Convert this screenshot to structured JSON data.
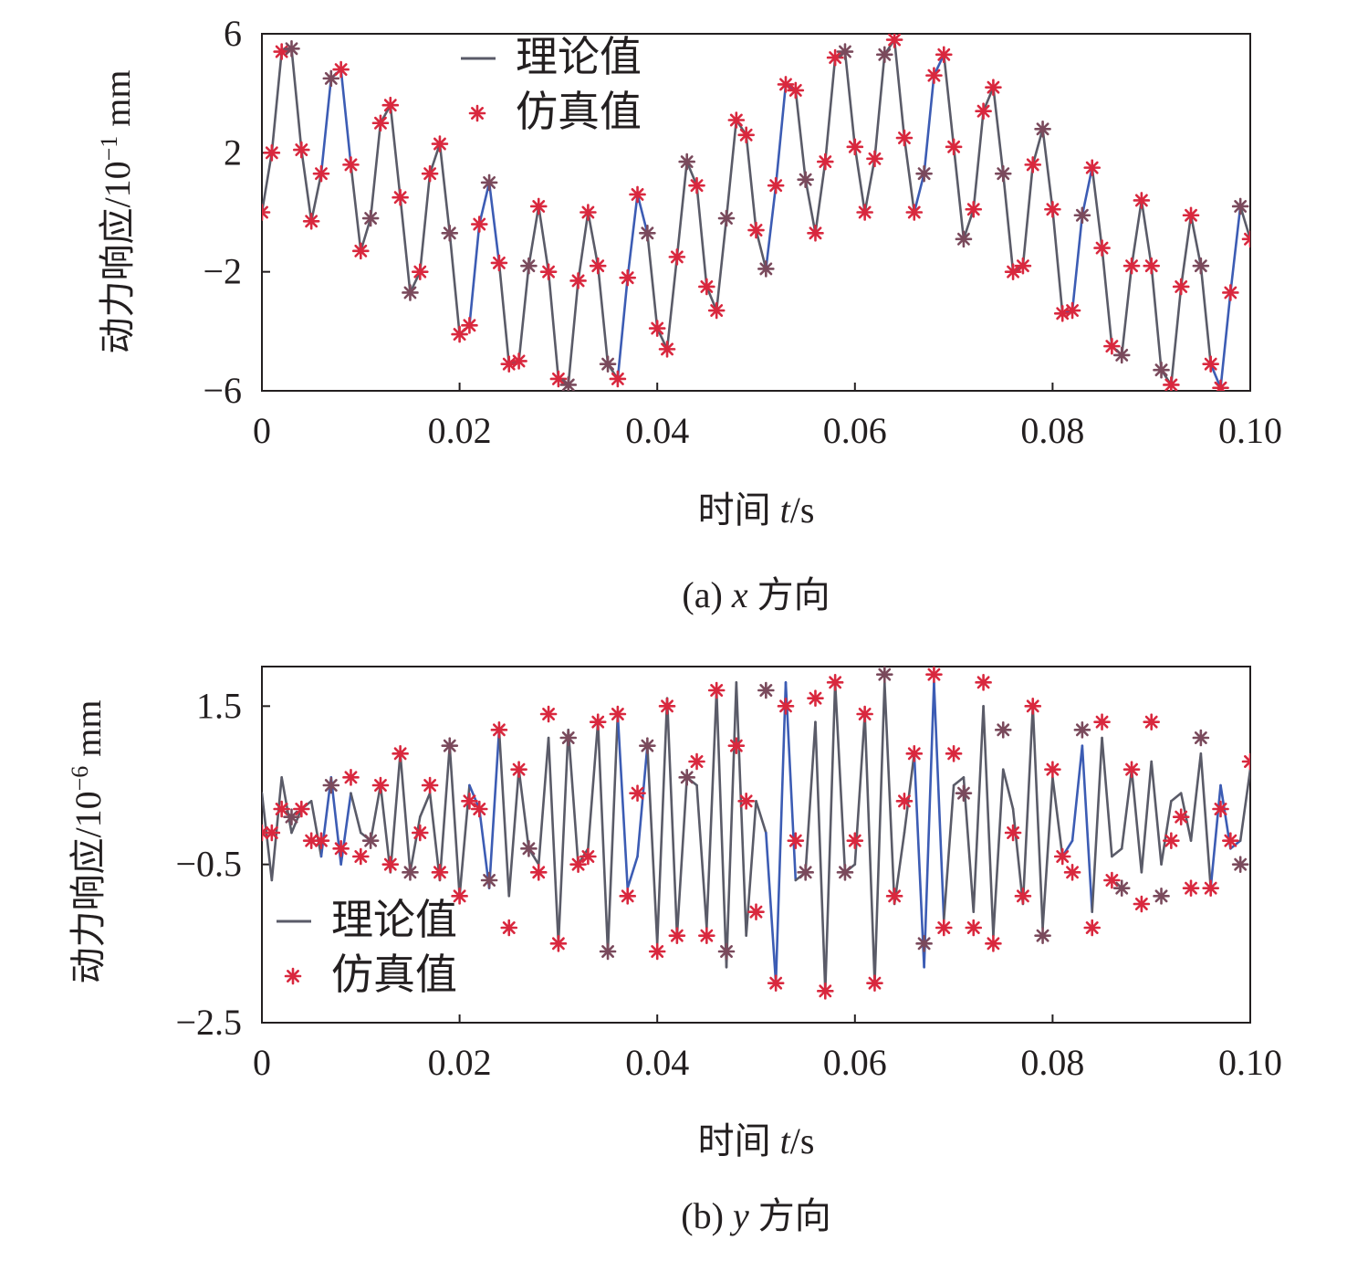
{
  "chart_data": [
    {
      "type": "line",
      "caption": {
        "prefix": "(a) ",
        "var": "x",
        "suffix": " 方向"
      },
      "xlabel": {
        "prefix": "时间 ",
        "var": "t",
        "suffix": "/s"
      },
      "ylabel": {
        "text": "动力响应/10",
        "exp": "−1",
        "unit": " mm"
      },
      "xlim": [
        0,
        0.1
      ],
      "ylim": [
        -6,
        6
      ],
      "xticks": [
        0,
        0.02,
        0.04,
        0.06,
        0.08,
        0.1
      ],
      "xtick_labels": [
        "0",
        "0.02",
        "0.04",
        "0.06",
        "0.08",
        "0.10"
      ],
      "yticks": [
        6,
        2,
        -2,
        -6
      ],
      "ytick_labels": [
        "6",
        "2",
        "−2",
        "−6"
      ],
      "legend": {
        "position": "top-center",
        "line_label": "理论值",
        "marker_label": "仿真值"
      },
      "line_colors": [
        "#5a5b68",
        "#3c5cb4"
      ],
      "marker_colors": [
        "#d9283e",
        "#7a4a5c"
      ],
      "series": [
        {
          "name": "理论值",
          "style": "line",
          "x": [
            0,
            0.001,
            0.002,
            0.003,
            0.004,
            0.005,
            0.006,
            0.007,
            0.008,
            0.009,
            0.01,
            0.011,
            0.012,
            0.013,
            0.014,
            0.015,
            0.016,
            0.017,
            0.018,
            0.019,
            0.02,
            0.021,
            0.022,
            0.023,
            0.024,
            0.025,
            0.026,
            0.027,
            0.028,
            0.029,
            0.03,
            0.031,
            0.032,
            0.033,
            0.034,
            0.035,
            0.036,
            0.037,
            0.038,
            0.039,
            0.04,
            0.041,
            0.042,
            0.043,
            0.044,
            0.045,
            0.046,
            0.047,
            0.048,
            0.049,
            0.05,
            0.051,
            0.052,
            0.053,
            0.054,
            0.055,
            0.056,
            0.057,
            0.058,
            0.059,
            0.06,
            0.061,
            0.062,
            0.063,
            0.064,
            0.065,
            0.066,
            0.067,
            0.068,
            0.069,
            0.07,
            0.071,
            0.072,
            0.073,
            0.074,
            0.075,
            0.076,
            0.077,
            0.078,
            0.079,
            0.08,
            0.081,
            0.082,
            0.083,
            0.084,
            0.085,
            0.086,
            0.087,
            0.088,
            0.089,
            0.09,
            0.091,
            0.092,
            0.093,
            0.094,
            0.095,
            0.096,
            0.097,
            0.098,
            0.099,
            0.1
          ],
          "y": [
            0.0,
            2.0,
            5.4,
            5.5,
            2.1,
            -0.3,
            1.3,
            4.5,
            4.8,
            1.6,
            -1.3,
            -0.2,
            3.0,
            3.6,
            0.5,
            -2.7,
            -2.0,
            1.3,
            2.3,
            -0.7,
            -4.1,
            -3.8,
            -0.4,
            1.0,
            -1.7,
            -5.1,
            -5.0,
            -1.8,
            0.2,
            -2.0,
            -5.6,
            -5.8,
            -2.3,
            0.0,
            -1.8,
            -5.1,
            -5.6,
            -2.2,
            0.6,
            -0.7,
            -3.9,
            -4.6,
            -1.5,
            1.7,
            0.9,
            -2.5,
            -3.3,
            -0.2,
            3.1,
            2.6,
            -0.6,
            -1.9,
            0.9,
            4.3,
            4.1,
            1.1,
            -0.7,
            1.7,
            5.2,
            5.4,
            2.2,
            0.0,
            1.8,
            5.3,
            5.8,
            2.5,
            0.0,
            1.3,
            4.6,
            5.3,
            2.2,
            -0.9,
            0.1,
            3.4,
            4.2,
            1.3,
            -2.0,
            -1.8,
            1.6,
            2.8,
            0.1,
            -3.4,
            -3.3,
            -0.1,
            1.5,
            -1.2,
            -4.5,
            -4.8,
            -1.8,
            0.4,
            -1.8,
            -5.3,
            -5.8,
            -2.5,
            -0.1,
            -1.8,
            -5.1,
            -5.9,
            -2.7,
            0.2,
            -0.9
          ]
        },
        {
          "name": "仿真值",
          "style": "marker",
          "x": [
            0,
            0.001,
            0.002,
            0.003,
            0.004,
            0.005,
            0.006,
            0.007,
            0.008,
            0.009,
            0.01,
            0.011,
            0.012,
            0.013,
            0.014,
            0.015,
            0.016,
            0.017,
            0.018,
            0.019,
            0.02,
            0.021,
            0.022,
            0.023,
            0.024,
            0.025,
            0.026,
            0.027,
            0.028,
            0.029,
            0.03,
            0.031,
            0.032,
            0.033,
            0.034,
            0.035,
            0.036,
            0.037,
            0.038,
            0.039,
            0.04,
            0.041,
            0.042,
            0.043,
            0.044,
            0.045,
            0.046,
            0.047,
            0.048,
            0.049,
            0.05,
            0.051,
            0.052,
            0.053,
            0.054,
            0.055,
            0.056,
            0.057,
            0.058,
            0.059,
            0.06,
            0.061,
            0.062,
            0.063,
            0.064,
            0.065,
            0.066,
            0.067,
            0.068,
            0.069,
            0.07,
            0.071,
            0.072,
            0.073,
            0.074,
            0.075,
            0.076,
            0.077,
            0.078,
            0.079,
            0.08,
            0.081,
            0.082,
            0.083,
            0.084,
            0.085,
            0.086,
            0.087,
            0.088,
            0.089,
            0.09,
            0.091,
            0.092,
            0.093,
            0.094,
            0.095,
            0.096,
            0.097,
            0.098,
            0.099,
            0.1
          ],
          "y": [
            0.0,
            2.0,
            5.4,
            5.5,
            2.1,
            -0.3,
            1.3,
            4.5,
            4.8,
            1.6,
            -1.3,
            -0.2,
            3.0,
            3.6,
            0.5,
            -2.7,
            -2.0,
            1.3,
            2.3,
            -0.7,
            -4.1,
            -3.8,
            -0.4,
            1.0,
            -1.7,
            -5.1,
            -5.0,
            -1.8,
            0.2,
            -2.0,
            -5.6,
            -5.8,
            -2.3,
            0.0,
            -1.8,
            -5.1,
            -5.6,
            -2.2,
            0.6,
            -0.7,
            -3.9,
            -4.6,
            -1.5,
            1.7,
            0.9,
            -2.5,
            -3.3,
            -0.2,
            3.1,
            2.6,
            -0.6,
            -1.9,
            0.9,
            4.3,
            4.1,
            1.1,
            -0.7,
            1.7,
            5.2,
            5.4,
            2.2,
            0.0,
            1.8,
            5.3,
            5.8,
            2.5,
            0.0,
            1.3,
            4.6,
            5.3,
            2.2,
            -0.9,
            0.1,
            3.4,
            4.2,
            1.3,
            -2.0,
            -1.8,
            1.6,
            2.8,
            0.1,
            -3.4,
            -3.3,
            -0.1,
            1.5,
            -1.2,
            -4.5,
            -4.8,
            -1.8,
            0.4,
            -1.8,
            -5.3,
            -5.8,
            -2.5,
            -0.1,
            -1.8,
            -5.1,
            -5.9,
            -2.7,
            0.2,
            -0.9
          ]
        }
      ]
    },
    {
      "type": "line",
      "caption": {
        "prefix": "(b) ",
        "var": "y",
        "suffix": " 方向"
      },
      "xlabel": {
        "prefix": "时间 ",
        "var": "t",
        "suffix": "/s"
      },
      "ylabel": {
        "text": "动力响应/10",
        "exp": "−6",
        "unit": " mm"
      },
      "xlim": [
        0,
        0.1
      ],
      "ylim": [
        -2.5,
        2.0
      ],
      "xticks": [
        0,
        0.02,
        0.04,
        0.06,
        0.08,
        0.1
      ],
      "xtick_labels": [
        "0",
        "0.02",
        "0.04",
        "0.06",
        "0.08",
        "0.10"
      ],
      "yticks": [
        1.5,
        -0.5,
        -2.5
      ],
      "ytick_labels": [
        "1.5",
        "−0.5",
        "−2.5"
      ],
      "legend": {
        "position": "bottom-left",
        "line_label": "理论值",
        "marker_label": "仿真值"
      },
      "line_colors": [
        "#5a5b68",
        "#3c5cb4"
      ],
      "marker_colors": [
        "#d9283e",
        "#7a4a5c"
      ],
      "series": [
        {
          "name": "理论值",
          "style": "line",
          "x": [
            0,
            0.001,
            0.002,
            0.003,
            0.004,
            0.005,
            0.006,
            0.007,
            0.008,
            0.009,
            0.01,
            0.011,
            0.012,
            0.013,
            0.014,
            0.015,
            0.016,
            0.017,
            0.018,
            0.019,
            0.02,
            0.021,
            0.022,
            0.023,
            0.024,
            0.025,
            0.026,
            0.027,
            0.028,
            0.029,
            0.03,
            0.031,
            0.032,
            0.033,
            0.034,
            0.035,
            0.036,
            0.037,
            0.038,
            0.039,
            0.04,
            0.041,
            0.042,
            0.043,
            0.044,
            0.045,
            0.046,
            0.047,
            0.048,
            0.049,
            0.05,
            0.051,
            0.052,
            0.053,
            0.054,
            0.055,
            0.056,
            0.057,
            0.058,
            0.059,
            0.06,
            0.061,
            0.062,
            0.063,
            0.064,
            0.065,
            0.066,
            0.067,
            0.068,
            0.069,
            0.07,
            0.071,
            0.072,
            0.073,
            0.074,
            0.075,
            0.076,
            0.077,
            0.078,
            0.079,
            0.08,
            0.081,
            0.082,
            0.083,
            0.084,
            0.085,
            0.086,
            0.087,
            0.088,
            0.089,
            0.09,
            0.091,
            0.092,
            0.093,
            0.094,
            0.095,
            0.096,
            0.097,
            0.098,
            0.099,
            0.1
          ],
          "y": [
            0.4,
            -0.7,
            0.6,
            -0.1,
            0.2,
            0.3,
            -0.4,
            0.6,
            -0.5,
            0.4,
            -0.1,
            -0.2,
            0.5,
            -0.6,
            0.9,
            -0.6,
            0.1,
            0.4,
            -0.7,
            1.0,
            -0.9,
            0.5,
            0.2,
            -0.8,
            1.2,
            -0.9,
            0.7,
            -0.3,
            -0.5,
            1.1,
            -1.5,
            1.2,
            -0.5,
            -0.3,
            1.3,
            -1.6,
            1.4,
            -0.8,
            -0.4,
            1.0,
            -1.5,
            1.6,
            -1.4,
            0.6,
            0.5,
            -1.3,
            1.7,
            -1.8,
            1.8,
            -1.4,
            0.3,
            -0.1,
            -2.0,
            1.8,
            -0.7,
            -0.6,
            1.3,
            -2.1,
            1.8,
            -0.6,
            -0.5,
            1.4,
            -2.0,
            1.8,
            -1.0,
            -0.1,
            0.9,
            -1.8,
            1.8,
            -1.2,
            0.5,
            0.6,
            -1.1,
            1.5,
            -1.4,
            0.7,
            0.2,
            -1.0,
            1.5,
            -1.3,
            0.6,
            -0.4,
            -0.2,
            1.0,
            -1.1,
            1.1,
            -0.4,
            -0.3,
            0.7,
            -0.6,
            0.8,
            -0.5,
            0.3,
            0.4,
            -0.2,
            0.9,
            -0.8,
            0.5,
            -0.3,
            -0.2,
            0.7
          ]
        },
        {
          "name": "仿真值",
          "style": "marker",
          "x": [
            0,
            0.001,
            0.002,
            0.003,
            0.004,
            0.005,
            0.006,
            0.007,
            0.008,
            0.009,
            0.01,
            0.011,
            0.012,
            0.013,
            0.014,
            0.015,
            0.016,
            0.017,
            0.018,
            0.019,
            0.02,
            0.021,
            0.022,
            0.023,
            0.024,
            0.025,
            0.026,
            0.027,
            0.028,
            0.029,
            0.03,
            0.031,
            0.032,
            0.033,
            0.034,
            0.035,
            0.036,
            0.037,
            0.038,
            0.039,
            0.04,
            0.041,
            0.042,
            0.043,
            0.044,
            0.045,
            0.046,
            0.047,
            0.048,
            0.049,
            0.05,
            0.051,
            0.052,
            0.053,
            0.054,
            0.055,
            0.056,
            0.057,
            0.058,
            0.059,
            0.06,
            0.061,
            0.062,
            0.063,
            0.064,
            0.065,
            0.066,
            0.067,
            0.068,
            0.069,
            0.07,
            0.071,
            0.072,
            0.073,
            0.074,
            0.075,
            0.076,
            0.077,
            0.078,
            0.079,
            0.08,
            0.081,
            0.082,
            0.083,
            0.084,
            0.085,
            0.086,
            0.087,
            0.088,
            0.089,
            0.09,
            0.091,
            0.092,
            0.093,
            0.094,
            0.095,
            0.096,
            0.097,
            0.098,
            0.099,
            0.1
          ],
          "y": [
            -0.1,
            -0.1,
            0.2,
            0.1,
            0.2,
            -0.2,
            -0.2,
            0.5,
            -0.3,
            0.6,
            -0.4,
            -0.2,
            0.5,
            -0.5,
            0.9,
            -0.6,
            -0.1,
            0.5,
            -0.6,
            1.0,
            -0.9,
            0.3,
            0.2,
            -0.7,
            1.2,
            -1.3,
            0.7,
            -0.3,
            -0.6,
            1.4,
            -1.5,
            1.1,
            -0.5,
            -0.4,
            1.3,
            -1.6,
            1.4,
            -0.9,
            0.4,
            1.0,
            -1.6,
            1.5,
            -1.4,
            0.6,
            0.8,
            -1.4,
            1.7,
            -1.6,
            1.0,
            0.3,
            -1.1,
            1.7,
            -2.0,
            1.5,
            -0.2,
            -0.6,
            1.6,
            -2.1,
            1.8,
            -0.6,
            -0.2,
            1.4,
            -2.0,
            1.9,
            -0.9,
            0.3,
            0.9,
            -1.5,
            1.9,
            -1.3,
            0.9,
            0.4,
            -1.3,
            1.8,
            -1.5,
            1.2,
            -0.1,
            -0.9,
            1.5,
            -1.4,
            0.7,
            -0.4,
            -0.6,
            1.2,
            -1.3,
            1.3,
            -0.7,
            -0.8,
            0.7,
            -1.0,
            1.3,
            -0.9,
            -0.2,
            0.1,
            -0.8,
            1.1,
            -0.8,
            0.2,
            -0.2,
            -0.5,
            0.8
          ]
        }
      ]
    }
  ]
}
